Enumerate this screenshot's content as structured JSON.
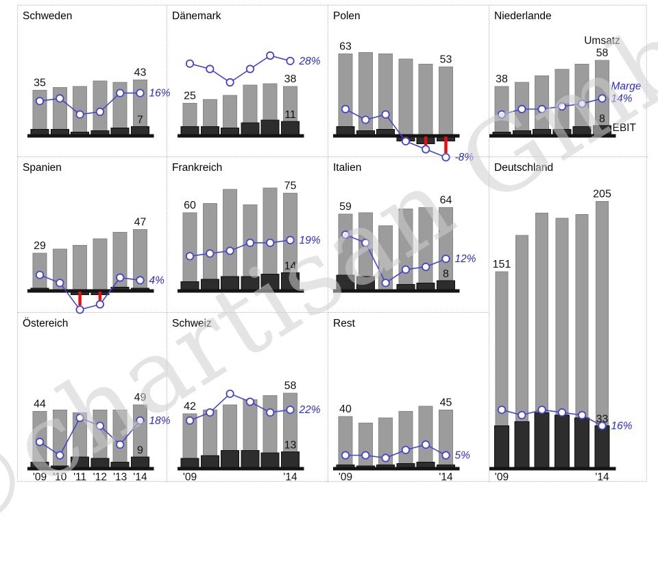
{
  "watermark": "©chartisan GmbH",
  "chart_data": {
    "type": "bar",
    "categories": [
      "'09",
      "'10",
      "'11",
      "'12",
      "'13",
      "'14"
    ],
    "series_labels": {
      "umsatz": "Umsatz",
      "ebit": "EBIT",
      "marge": "Marge"
    },
    "colors": {
      "umsatz": "#9c9c9c",
      "umsatz_stroke": "#868686",
      "ebit": "#2d2d2d",
      "ebit_stroke": "#0d0d0d",
      "marge": "#4444cd",
      "marge_text": "#2b2bd0",
      "negative": "#ea0e0e",
      "axis": "#141414",
      "label": "#111111"
    },
    "legend_position": "niederlande-panel",
    "grid_lines": false,
    "panels": [
      {
        "title": "Schweden",
        "grid": {
          "col": 1,
          "row": 1,
          "rowspan": 1
        },
        "umsatz": [
          35,
          37,
          38,
          42,
          41,
          43
        ],
        "ebit": [
          5,
          5,
          3,
          4,
          6,
          7
        ],
        "marge_pct": [
          13,
          14,
          8,
          9,
          16,
          16
        ],
        "labels": {
          "first_umsatz": "35",
          "last_umsatz": "43",
          "last_ebit": "7",
          "last_marge": "16%"
        },
        "x_ticks": []
      },
      {
        "title": "Dänemark",
        "grid": {
          "col": 2,
          "row": 1,
          "rowspan": 1
        },
        "umsatz": [
          25,
          28,
          31,
          39,
          40,
          38
        ],
        "ebit": [
          7,
          7,
          6,
          10,
          12,
          11
        ],
        "marge_pct": [
          27,
          25,
          20,
          25,
          30,
          28
        ],
        "labels": {
          "first_umsatz": "25",
          "last_umsatz": "38",
          "last_ebit": "11",
          "last_marge": "28%"
        },
        "x_ticks": []
      },
      {
        "title": "Polen",
        "grid": {
          "col": 3,
          "row": 1,
          "rowspan": 1
        },
        "umsatz": [
          63,
          64,
          63,
          59,
          55,
          53
        ],
        "ebit": [
          7,
          4,
          5,
          -4,
          -6,
          -4
        ],
        "marge_pct": [
          10,
          6,
          8,
          -2,
          -5,
          -8
        ],
        "labels": {
          "first_umsatz": "63",
          "last_umsatz": "53",
          "last_ebit": null,
          "last_marge": "-8%"
        },
        "x_ticks": []
      },
      {
        "title": "Niederlande",
        "grid": {
          "col": 4,
          "row": 1,
          "rowspan": 1
        },
        "umsatz": [
          38,
          41,
          46,
          51,
          55,
          58
        ],
        "ebit": [
          3,
          4,
          5,
          5,
          7,
          8
        ],
        "marge_pct": [
          8,
          10,
          10,
          11,
          12,
          14
        ],
        "labels": {
          "first_umsatz": "38",
          "last_umsatz": "58",
          "last_ebit": "8",
          "last_marge": "14%"
        },
        "show_series_labels": true,
        "x_ticks": []
      },
      {
        "title": "Spanien",
        "grid": {
          "col": 1,
          "row": 2,
          "rowspan": 1
        },
        "umsatz": [
          29,
          32,
          35,
          40,
          45,
          47
        ],
        "ebit": [
          2,
          1,
          -3,
          -3,
          3,
          2
        ],
        "marge_pct": [
          6,
          3,
          -7,
          -5,
          5,
          4
        ],
        "labels": {
          "first_umsatz": "29",
          "last_umsatz": "47",
          "last_ebit": null,
          "last_marge": "4%"
        },
        "x_ticks": []
      },
      {
        "title": "Frankreich",
        "grid": {
          "col": 2,
          "row": 2,
          "rowspan": 1
        },
        "umsatz": [
          60,
          67,
          78,
          66,
          79,
          75
        ],
        "ebit": [
          7,
          9,
          11,
          11,
          13,
          14
        ],
        "marge_pct": [
          13,
          14,
          15,
          18,
          18,
          19
        ],
        "labels": {
          "first_umsatz": "60",
          "last_umsatz": "75",
          "last_ebit": "14",
          "last_marge": "19%"
        },
        "x_ticks": []
      },
      {
        "title": "Italien",
        "grid": {
          "col": 3,
          "row": 2,
          "rowspan": 1
        },
        "umsatz": [
          59,
          60,
          50,
          63,
          64,
          64
        ],
        "ebit": [
          12,
          11,
          1,
          5,
          6,
          8
        ],
        "marge_pct": [
          21,
          18,
          3,
          8,
          9,
          12
        ],
        "labels": {
          "first_umsatz": "59",
          "last_umsatz": "64",
          "last_ebit": "8",
          "last_marge": "12%"
        },
        "x_ticks": []
      },
      {
        "title": "Deutschland",
        "grid": {
          "col": 4,
          "row": 2,
          "rowspan": 2
        },
        "narrow": true,
        "umsatz": [
          151,
          179,
          196,
          192,
          195,
          205
        ],
        "ebit": [
          33,
          36,
          43,
          41,
          39,
          33
        ],
        "marge_pct": [
          22,
          20,
          22,
          21,
          20,
          16
        ],
        "labels": {
          "first_umsatz": "151",
          "last_umsatz": "205",
          "last_ebit": "33",
          "last_marge": "16%"
        },
        "x_ticks": [
          "'09",
          null,
          null,
          null,
          null,
          "'14"
        ]
      },
      {
        "title": "Östereich",
        "grid": {
          "col": 1,
          "row": 3,
          "rowspan": 1
        },
        "umsatz": [
          44,
          45,
          43,
          45,
          45,
          49
        ],
        "ebit": [
          5,
          2,
          9,
          8,
          5,
          9
        ],
        "marge_pct": [
          10,
          5,
          19,
          16,
          9,
          18
        ],
        "labels": {
          "first_umsatz": "44",
          "last_umsatz": "49",
          "last_ebit": "9",
          "last_marge": "18%"
        },
        "x_ticks": [
          "'09",
          "'10",
          "'11",
          "'12",
          "'13",
          "'14"
        ]
      },
      {
        "title": "Schweiz",
        "grid": {
          "col": 2,
          "row": 3,
          "rowspan": 1
        },
        "umsatz": [
          42,
          45,
          49,
          53,
          56,
          58
        ],
        "ebit": [
          8,
          10,
          14,
          14,
          12,
          13
        ],
        "marge_pct": [
          18,
          21,
          28,
          25,
          21,
          22
        ],
        "labels": {
          "first_umsatz": "42",
          "last_umsatz": "58",
          "last_ebit": "13",
          "last_marge": "22%"
        },
        "x_ticks": [
          "'09",
          null,
          null,
          null,
          null,
          "'14"
        ]
      },
      {
        "title": "Rest",
        "grid": {
          "col": 3,
          "row": 3,
          "rowspan": 1
        },
        "umsatz": [
          40,
          35,
          39,
          44,
          48,
          45
        ],
        "ebit": [
          3,
          2,
          3,
          4,
          5,
          3
        ],
        "marge_pct": [
          5,
          5,
          4,
          7,
          9,
          5
        ],
        "labels": {
          "first_umsatz": "40",
          "last_umsatz": "45",
          "last_ebit": null,
          "last_marge": "5%"
        },
        "x_ticks": [
          "'09",
          null,
          null,
          null,
          null,
          "'14"
        ]
      }
    ]
  }
}
